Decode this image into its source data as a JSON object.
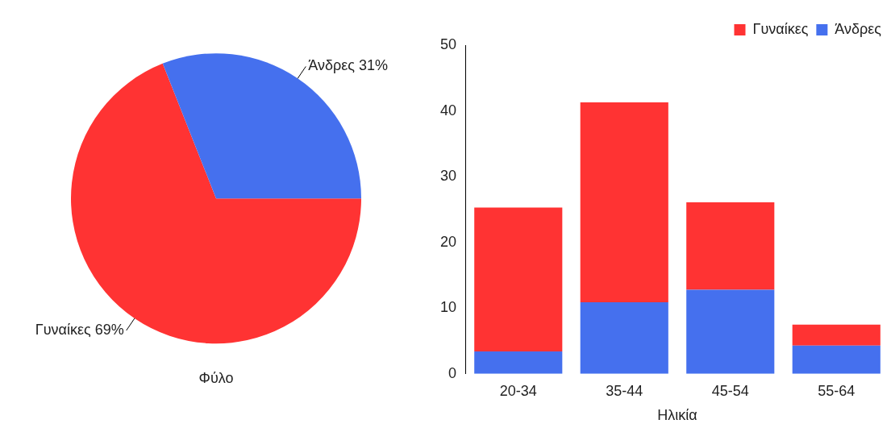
{
  "chart_data": [
    {
      "type": "pie",
      "xlabel": "Φύλο",
      "categories": [
        "Γυναίκες",
        "Άνδρες"
      ],
      "values": [
        69,
        31
      ],
      "colors": [
        "#ff3333",
        "#4570ee"
      ],
      "value_labels": [
        "69%",
        "31%"
      ],
      "legend": false
    },
    {
      "type": "bar",
      "xlabel": "Ηλικία",
      "categories": [
        "20-34",
        "35-44",
        "45-54",
        "55-64"
      ],
      "stacked": true,
      "legend": "top right",
      "grid": false,
      "ylim": [
        0,
        50
      ],
      "yticks": [
        0,
        10,
        20,
        30,
        40,
        50
      ],
      "series": [
        {
          "name": "Άνδρες",
          "color": "#4570ee",
          "values": [
            3.4,
            10.9,
            12.8,
            4.3
          ]
        },
        {
          "name": "Γυναίκες",
          "color": "#ff3333",
          "values": [
            21.9,
            30.4,
            13.3,
            3.2
          ]
        }
      ]
    }
  ]
}
